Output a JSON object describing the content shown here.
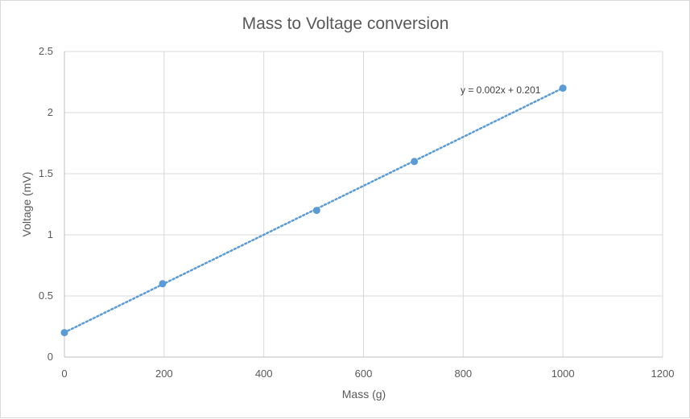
{
  "chart_data": {
    "type": "scatter",
    "title": "Mass to Voltage conversion",
    "xlabel": "Mass (g)",
    "ylabel": "Voltage (mV)",
    "xlim": [
      0,
      1200
    ],
    "ylim": [
      0,
      2.5
    ],
    "xticks": [
      0,
      200,
      400,
      600,
      800,
      1000,
      1200
    ],
    "yticks": [
      0,
      0.5,
      1,
      1.5,
      2,
      2.5
    ],
    "grid": true,
    "legend": "none",
    "series": [
      {
        "x": [
          0,
          197,
          506,
          702,
          1000
        ],
        "y": [
          0.2,
          0.6,
          1.2,
          1.6,
          2.2
        ],
        "color": "#5b9bd5"
      }
    ],
    "trendline": {
      "type": "linear",
      "slope": 0.002,
      "intercept": 0.201,
      "x_range": [
        0,
        1000
      ],
      "style": "dotted",
      "color": "#5b9bd5",
      "equation": "y = 0.002x + 0.201"
    }
  }
}
